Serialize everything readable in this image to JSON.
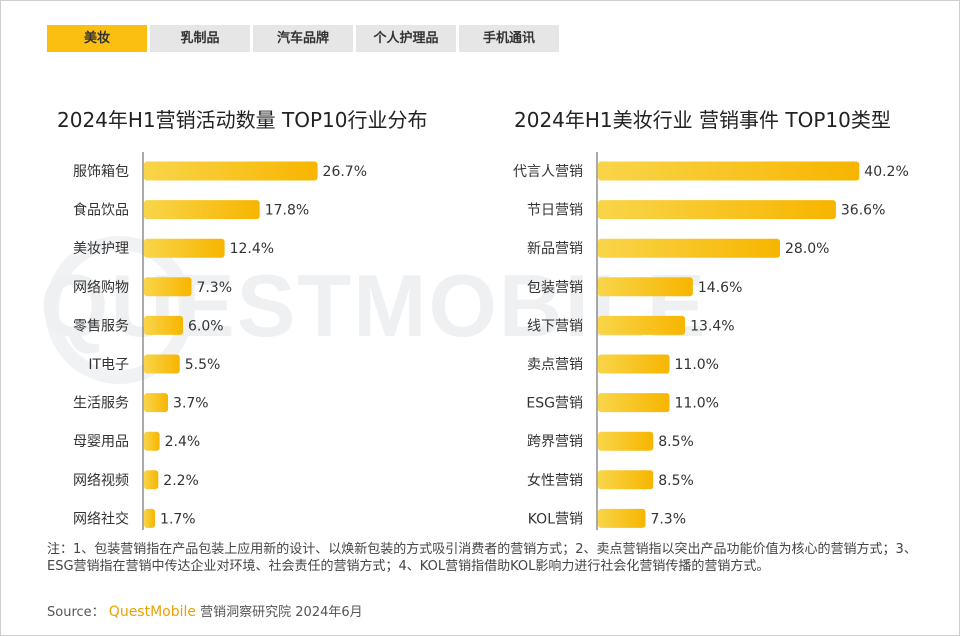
{
  "tabs": [
    {
      "label": "美妆",
      "active": true
    },
    {
      "label": "乳制品",
      "active": false
    },
    {
      "label": "汽车品牌",
      "active": false
    },
    {
      "label": "个人护理品",
      "active": false
    },
    {
      "label": "手机通讯",
      "active": false
    }
  ],
  "watermark": "QUESTMOBILE",
  "chart_data": [
    {
      "type": "bar",
      "orientation": "horizontal",
      "title": "2024年H1营销活动数量 TOP10行业分布",
      "categories": [
        "服饰箱包",
        "食品饮品",
        "美妆护理",
        "网络购物",
        "零售服务",
        "IT电子",
        "生活服务",
        "母婴用品",
        "网络视频",
        "网络社交"
      ],
      "values": [
        26.7,
        17.8,
        12.4,
        7.3,
        6.0,
        5.5,
        3.7,
        2.4,
        2.2,
        1.7
      ],
      "unit": "%",
      "xlim": [
        0,
        45
      ]
    },
    {
      "type": "bar",
      "orientation": "horizontal",
      "title": "2024年H1美妆行业 营销事件 TOP10类型",
      "categories": [
        "代言人营销",
        "节日营销",
        "新品营销",
        "包装营销",
        "线下营销",
        "卖点营销",
        "ESG营销",
        "跨界营销",
        "女性营销",
        "KOL营销"
      ],
      "values": [
        40.2,
        36.6,
        28.0,
        14.6,
        13.4,
        11.0,
        11.0,
        8.5,
        8.5,
        7.3
      ],
      "unit": "%",
      "xlim": [
        0,
        45
      ]
    }
  ],
  "colors": {
    "bar_start": "#f9d54a",
    "bar_end": "#f7b500",
    "tab_active": "#fbbf11",
    "brand": "#e8a200"
  },
  "notes": "注：1、包装营销指在产品包装上应用新的设计、以焕新包装的方式吸引消费者的营销方式；2、卖点营销指以突出产品功能价值为核心的营销方式；3、ESG营销指在营销中传达企业对环境、社会责任的营销方式；4、KOL营销指借助KOL影响力进行社会化营销传播的营销方式。",
  "source": {
    "label": "Source：",
    "brand": "QuestMobile",
    "text": "营销洞察研究院 2024年6月"
  }
}
